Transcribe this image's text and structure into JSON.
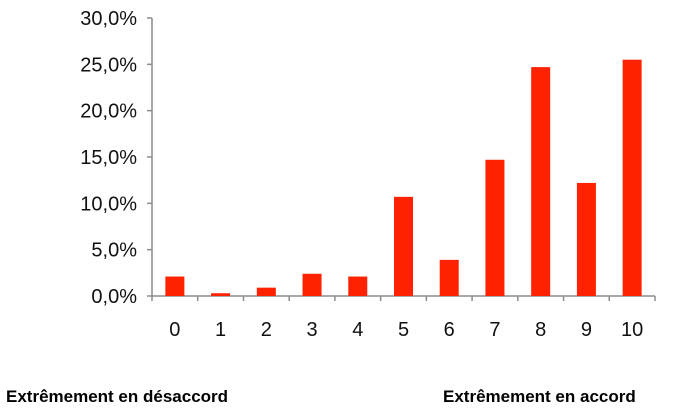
{
  "chart_data": {
    "type": "bar",
    "categories": [
      "0",
      "1",
      "2",
      "3",
      "4",
      "5",
      "6",
      "7",
      "8",
      "9",
      "10"
    ],
    "values": [
      2.1,
      0.3,
      0.9,
      2.4,
      2.1,
      10.7,
      3.9,
      14.7,
      24.7,
      12.2,
      25.5
    ],
    "y_tick_labels": [
      "0,0%",
      "5,0%",
      "10,0%",
      "15,0%",
      "20,0%",
      "25,0%",
      "30,0%"
    ],
    "y_unit": "%",
    "ylim": [
      0,
      30
    ],
    "ytick_step": 5,
    "grid": false,
    "legend": "none",
    "bar_color": "#ff2200",
    "axis_color": "#8c8c8c",
    "title": "",
    "xlabel": "",
    "ylabel": ""
  },
  "scale_labels": {
    "left": "Extrêmement en désaccord",
    "right": "Extrêmement en accord"
  }
}
